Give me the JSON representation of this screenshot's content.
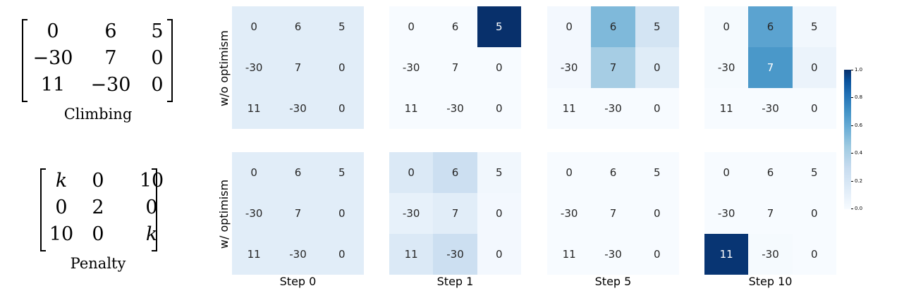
{
  "matrices": [
    {
      "caption": "Climbing",
      "cells": [
        [
          "0",
          "6",
          "5"
        ],
        [
          "−30",
          "7",
          "0"
        ],
        [
          "11",
          "−30",
          "0"
        ]
      ]
    },
    {
      "caption": "Penalty",
      "cells": [
        [
          "k",
          "0",
          "10"
        ],
        [
          "0",
          "2",
          "0"
        ],
        [
          "10",
          "0",
          "k"
        ]
      ]
    }
  ],
  "row_labels": [
    "w/o optimism",
    "w/ optimism"
  ],
  "steps": [
    "Step 0",
    "Step 1",
    "Step 5",
    "Step 10"
  ],
  "cell_values": [
    [
      "0",
      "6",
      "5"
    ],
    [
      "-30",
      "7",
      "0"
    ],
    [
      "11",
      "-30",
      "0"
    ]
  ],
  "heatmaps": [
    [
      [
        [
          0.11,
          0.11,
          0.11
        ],
        [
          0.11,
          0.11,
          0.11
        ],
        [
          0.11,
          0.11,
          0.11
        ]
      ],
      [
        [
          0.0,
          0.0,
          1.0
        ],
        [
          0.0,
          0.0,
          0.0
        ],
        [
          0.0,
          0.0,
          0.0
        ]
      ],
      [
        [
          0.02,
          0.45,
          0.18
        ],
        [
          0.02,
          0.35,
          0.12
        ],
        [
          0.0,
          0.0,
          0.0
        ]
      ],
      [
        [
          0.01,
          0.55,
          0.03
        ],
        [
          0.01,
          0.6,
          0.06
        ],
        [
          0.0,
          0.0,
          0.0
        ]
      ]
    ],
    [
      [
        [
          0.11,
          0.11,
          0.11
        ],
        [
          0.11,
          0.11,
          0.11
        ],
        [
          0.11,
          0.11,
          0.11
        ]
      ],
      [
        [
          0.14,
          0.22,
          0.03
        ],
        [
          0.08,
          0.11,
          0.02
        ],
        [
          0.14,
          0.22,
          0.02
        ]
      ],
      [
        [
          0.0,
          0.0,
          0.0
        ],
        [
          0.0,
          0.0,
          0.0
        ],
        [
          0.0,
          0.0,
          0.0
        ]
      ],
      [
        [
          0.0,
          0.0,
          0.0
        ],
        [
          0.0,
          0.0,
          0.0
        ],
        [
          0.98,
          0.01,
          0.0
        ]
      ]
    ]
  ],
  "colorbar": {
    "ticks": [
      "1.0",
      "0.8",
      "0.6",
      "0.4",
      "0.2",
      "0.0"
    ],
    "range": [
      0.0,
      1.0
    ],
    "colormap": "Blues"
  },
  "colors": {
    "low": "#f7fbff",
    "high": "#08306b"
  }
}
